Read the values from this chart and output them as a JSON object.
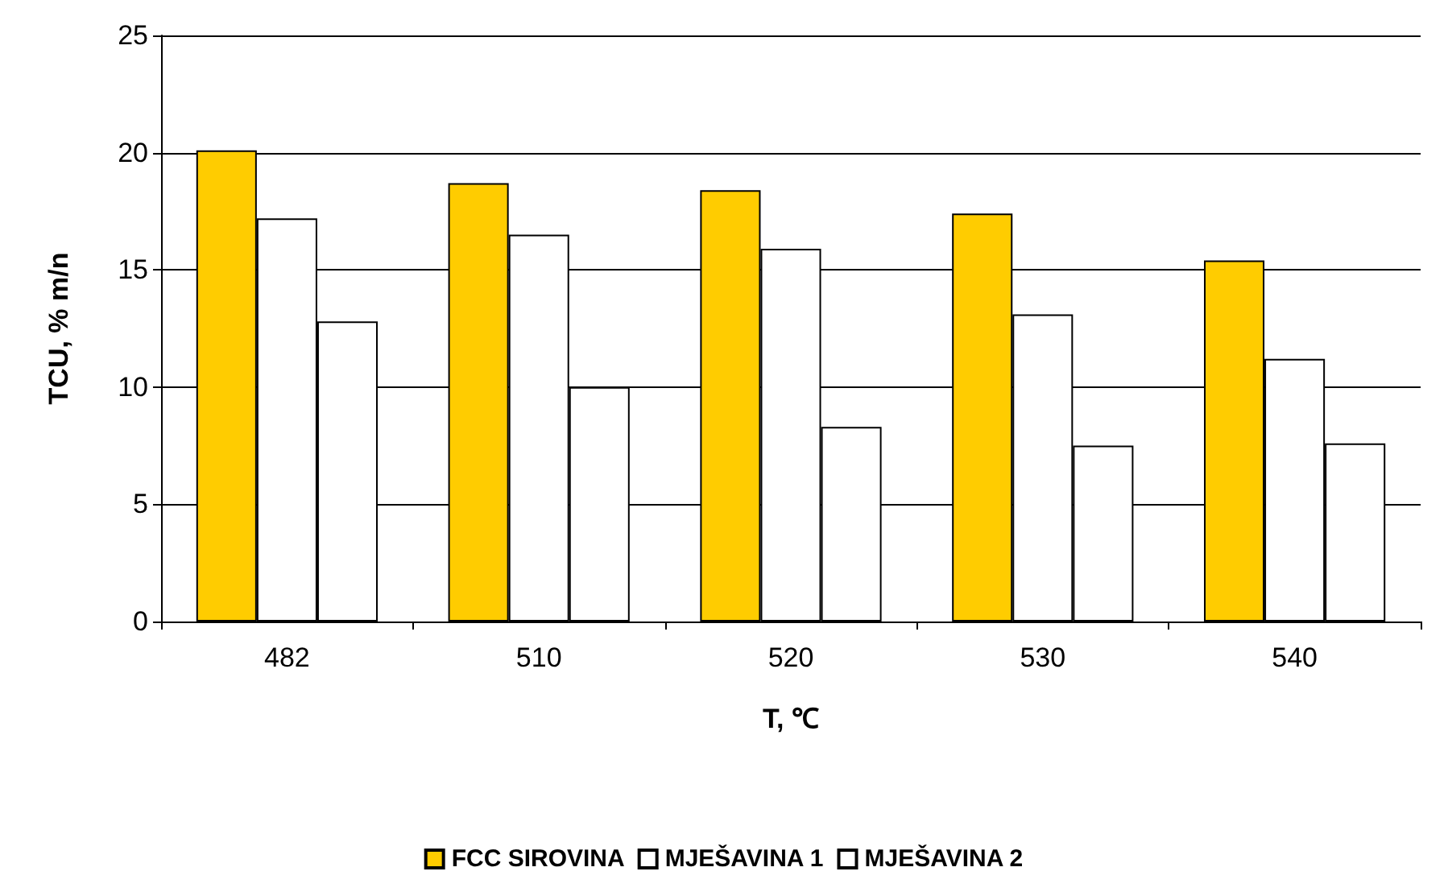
{
  "chart_data": {
    "type": "bar",
    "xlabel": "T, ℃",
    "ylabel": "TCU, % m/n",
    "categories": [
      "482",
      "510",
      "520",
      "530",
      "540"
    ],
    "series": [
      {
        "name": "FCC SIROVINA",
        "color": "#ffcc00",
        "values": [
          20.1,
          18.7,
          18.4,
          17.4,
          15.4
        ]
      },
      {
        "name": "MJEŠAVINA 1",
        "color": "#ffffff",
        "values": [
          17.2,
          16.5,
          15.9,
          13.1,
          11.2
        ]
      },
      {
        "name": "MJEŠAVINA 2",
        "color": "#ffffff",
        "values": [
          12.8,
          10.0,
          8.3,
          7.5,
          7.6
        ]
      }
    ],
    "ylim": [
      0,
      25
    ],
    "yticks": [
      0,
      5,
      10,
      15,
      20,
      25
    ],
    "grid": "y",
    "legend": "bottom"
  }
}
